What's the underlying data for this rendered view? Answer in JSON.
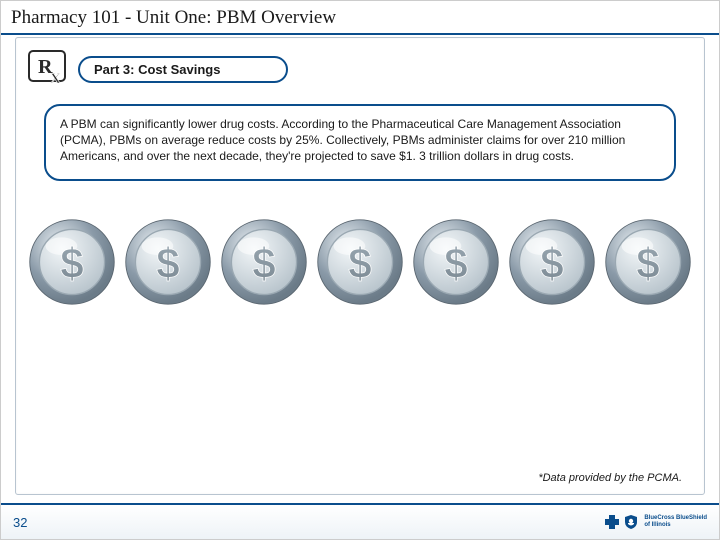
{
  "slide": {
    "title": "Pharmacy 101 - Unit One: PBM Overview",
    "part_label": "Part 3: Cost Savings",
    "body_text": "A PBM can significantly lower drug costs. According to the Pharmaceutical Care Management Association (PCMA), PBMs on average reduce costs by 25%. Collectively, PBMs administer claims for over 210 million Americans, and over the next decade, they're projected to save $1. 3 trillion dollars in drug costs.",
    "footnote": "*Data provided by the PCMA.",
    "page_number": "32",
    "logo_line1": "BlueCross BlueShield",
    "logo_line2": "of Illinois"
  },
  "style": {
    "accent_color": "#0a4d8c",
    "border_color": "#b8c4d0",
    "coin_outer": "#8a9aa8",
    "coin_rim_light": "#e8eef2",
    "coin_rim_dark": "#6b7b88",
    "coin_face_light": "#f2f6f8",
    "coin_face_dark": "#b8c4cc",
    "coin_symbol": "#7a8892",
    "coin_count": 7,
    "rx_dark": "#2a2a2a",
    "rx_light": "#ffffff"
  }
}
